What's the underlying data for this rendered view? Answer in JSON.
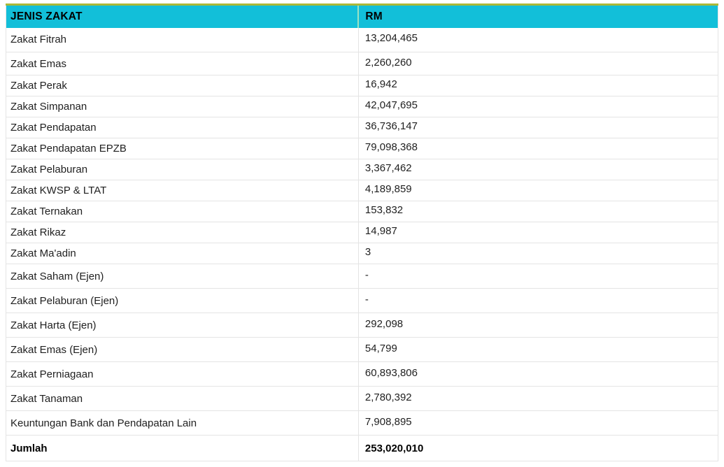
{
  "table": {
    "columns": [
      {
        "label": "JENIS ZAKAT"
      },
      {
        "label": "RM"
      }
    ],
    "rows": [
      {
        "jenis": "Zakat Fitrah",
        "rm": "13,204,465"
      },
      {
        "jenis": "Zakat Emas",
        "rm": "2,260,260"
      },
      {
        "jenis": "Zakat Perak",
        "rm": "16,942"
      },
      {
        "jenis": "Zakat Simpanan",
        "rm": "42,047,695"
      },
      {
        "jenis": "Zakat Pendapatan",
        "rm": "36,736,147"
      },
      {
        "jenis": "Zakat Pendapatan EPZB",
        "rm": "79,098,368"
      },
      {
        "jenis": "Zakat Pelaburan",
        "rm": "3,367,462"
      },
      {
        "jenis": "Zakat KWSP & LTAT",
        "rm": "4,189,859"
      },
      {
        "jenis": "Zakat Ternakan",
        "rm": "153,832"
      },
      {
        "jenis": "Zakat Rikaz",
        "rm": "14,987"
      },
      {
        "jenis": "Zakat Ma'adin",
        "rm": "3"
      },
      {
        "jenis": "Zakat Saham (Ejen)",
        "rm": "-"
      },
      {
        "jenis": "Zakat Pelaburan (Ejen)",
        "rm": "-"
      },
      {
        "jenis": "Zakat Harta (Ejen)",
        "rm": "292,098"
      },
      {
        "jenis": "Zakat Emas (Ejen)",
        "rm": "54,799"
      },
      {
        "jenis": "Zakat Perniagaan",
        "rm": "60,893,806"
      },
      {
        "jenis": "Zakat Tanaman",
        "rm": "2,780,392"
      },
      {
        "jenis": "Keuntungan Bank dan Pendapatan Lain",
        "rm": "7,908,895"
      }
    ],
    "total": {
      "jenis": "Jumlah",
      "rm": "253,020,010"
    }
  },
  "colors": {
    "header_bg": "#12bfd9",
    "header_top_border": "#a9b838",
    "header_divider": "#9ce2c4",
    "row_border": "#e4e4e4",
    "body_text": "#1f1f1f",
    "header_text": "#000000"
  },
  "chart_data": {
    "type": "table",
    "title": "",
    "columns": [
      "JENIS ZAKAT",
      "RM"
    ],
    "rows": [
      [
        "Zakat Fitrah",
        13204465
      ],
      [
        "Zakat Emas",
        2260260
      ],
      [
        "Zakat Perak",
        16942
      ],
      [
        "Zakat Simpanan",
        42047695
      ],
      [
        "Zakat Pendapatan",
        36736147
      ],
      [
        "Zakat Pendapatan EPZB",
        79098368
      ],
      [
        "Zakat Pelaburan",
        3367462
      ],
      [
        "Zakat KWSP & LTAT",
        4189859
      ],
      [
        "Zakat Ternakan",
        153832
      ],
      [
        "Zakat Rikaz",
        14987
      ],
      [
        "Zakat Ma'adin",
        3
      ],
      [
        "Zakat Saham (Ejen)",
        null
      ],
      [
        "Zakat Pelaburan (Ejen)",
        null
      ],
      [
        "Zakat Harta (Ejen)",
        292098
      ],
      [
        "Zakat Emas (Ejen)",
        54799
      ],
      [
        "Zakat Perniagaan",
        60893806
      ],
      [
        "Zakat Tanaman",
        2780392
      ],
      [
        "Keuntungan Bank dan Pendapatan Lain",
        7908895
      ]
    ],
    "total": [
      "Jumlah",
      253020010
    ]
  }
}
